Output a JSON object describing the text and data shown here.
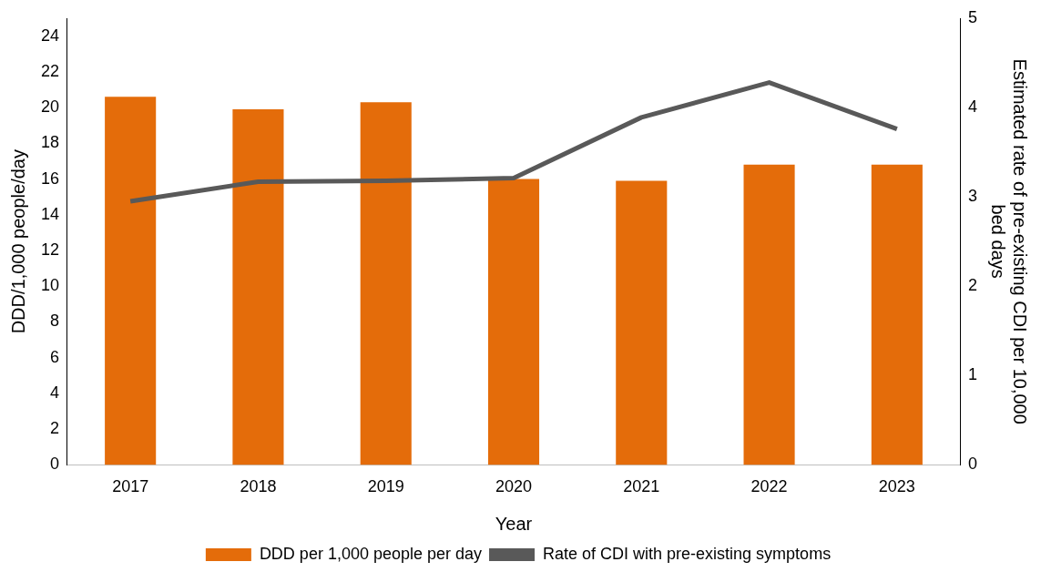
{
  "chart_data": {
    "type": "bar",
    "xlabel": "Year",
    "ylabel": "DDD/1,000 people/day",
    "y2label": "Estimated rate of pre-existing CDI per 10,000 bed days",
    "categories": [
      "2017",
      "2018",
      "2019",
      "2020",
      "2021",
      "2022",
      "2023"
    ],
    "series": [
      {
        "name": "DDD per 1,000 people per day",
        "color": "#e46c0a",
        "values": [
          20.6,
          19.9,
          20.3,
          16.0,
          15.9,
          16.8,
          16.8
        ]
      },
      {
        "name": "Rate of CDI with pre-existing symptoms",
        "type": "line",
        "axis": "y2",
        "color": "#595959",
        "values": [
          2.95,
          3.17,
          3.18,
          3.21,
          3.89,
          4.28,
          3.76
        ]
      }
    ],
    "ylim": [
      0,
      25
    ],
    "yticks": [
      0,
      2,
      4,
      6,
      8,
      10,
      12,
      14,
      16,
      18,
      20,
      22,
      24
    ],
    "y2lim": [
      0,
      5
    ],
    "y2ticks": [
      0,
      1,
      2,
      3,
      4,
      5
    ],
    "grid": false,
    "legend": "bottom",
    "marker": "none",
    "line_style": "solid"
  }
}
